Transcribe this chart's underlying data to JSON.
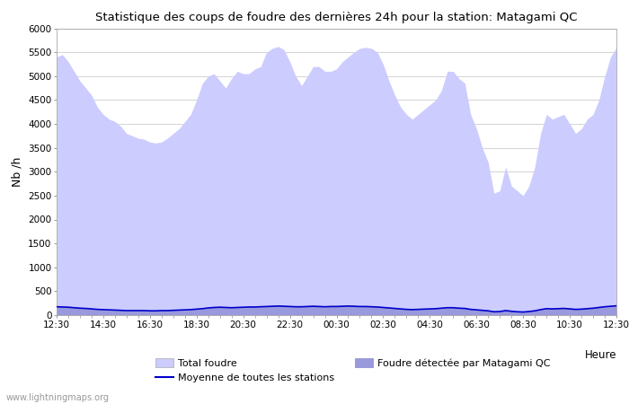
{
  "title": "Statistique des coups de foudre des dernières 24h pour la station: Matagami QC",
  "ylabel": "Nb /h",
  "xlabel": "Heure",
  "watermark": "www.lightningmaps.org",
  "ylim": [
    0,
    6000
  ],
  "yticks": [
    0,
    500,
    1000,
    1500,
    2000,
    2500,
    3000,
    3500,
    4000,
    4500,
    5000,
    5500,
    6000
  ],
  "xtick_labels": [
    "12:30",
    "14:30",
    "16:30",
    "18:30",
    "20:30",
    "22:30",
    "00:30",
    "02:30",
    "04:30",
    "06:30",
    "08:30",
    "10:30",
    "12:30"
  ],
  "total_foudre_color": "#ccccff",
  "matagami_color": "#9999dd",
  "moyenne_color": "#0000cc",
  "bg_color": "#ffffff",
  "grid_color": "#cccccc",
  "legend_labels": [
    "Total foudre",
    "Moyenne de toutes les stations",
    "Foudre détectée par Matagami QC"
  ],
  "n_points": 97,
  "total_foudre": [
    5400,
    5450,
    5300,
    5100,
    4900,
    4750,
    4600,
    4350,
    4200,
    4100,
    4050,
    3950,
    3800,
    3750,
    3700,
    3680,
    3620,
    3600,
    3620,
    3700,
    3800,
    3900,
    4050,
    4200,
    4500,
    4850,
    5000,
    5050,
    4900,
    4750,
    4950,
    5100,
    5050,
    5050,
    5150,
    5200,
    5500,
    5580,
    5620,
    5550,
    5300,
    5000,
    4800,
    5000,
    5200,
    5200,
    5100,
    5100,
    5150,
    5300,
    5400,
    5500,
    5580,
    5600,
    5580,
    5500,
    5250,
    4900,
    4600,
    4350,
    4200,
    4100,
    4200,
    4300,
    4400,
    4500,
    4700,
    5100,
    5100,
    4950,
    4850,
    4200,
    3900,
    3500,
    3200,
    2550,
    2600,
    3100,
    2700,
    2600,
    2500,
    2700,
    3100,
    3800,
    4200,
    4100,
    4150,
    4200,
    4000,
    3800,
    3900,
    4100,
    4200,
    4500,
    5000,
    5400,
    5600
  ],
  "matagami_foudre": [
    200,
    195,
    185,
    175,
    165,
    155,
    145,
    135,
    125,
    115,
    110,
    105,
    100,
    100,
    100,
    100,
    95,
    95,
    100,
    100,
    105,
    110,
    115,
    120,
    130,
    145,
    160,
    175,
    180,
    175,
    170,
    175,
    180,
    185,
    185,
    190,
    195,
    200,
    210,
    205,
    200,
    195,
    195,
    200,
    205,
    200,
    195,
    200,
    200,
    200,
    205,
    200,
    195,
    195,
    190,
    185,
    175,
    165,
    150,
    140,
    130,
    125,
    130,
    135,
    140,
    145,
    155,
    165,
    165,
    155,
    150,
    130,
    120,
    110,
    100,
    80,
    85,
    110,
    90,
    80,
    75,
    85,
    100,
    130,
    150,
    145,
    150,
    155,
    145,
    135,
    140,
    150,
    160,
    175,
    190,
    200,
    210
  ],
  "moyenne": [
    175,
    170,
    165,
    155,
    145,
    140,
    130,
    120,
    115,
    110,
    105,
    100,
    95,
    95,
    95,
    95,
    90,
    90,
    95,
    95,
    100,
    105,
    110,
    115,
    125,
    135,
    150,
    160,
    165,
    160,
    155,
    160,
    165,
    170,
    170,
    175,
    180,
    185,
    190,
    185,
    180,
    175,
    175,
    180,
    185,
    180,
    175,
    180,
    180,
    185,
    190,
    185,
    180,
    180,
    175,
    170,
    160,
    150,
    140,
    130,
    120,
    115,
    120,
    125,
    130,
    135,
    145,
    155,
    155,
    145,
    140,
    120,
    110,
    100,
    90,
    70,
    75,
    95,
    80,
    70,
    65,
    75,
    90,
    115,
    135,
    130,
    135,
    140,
    130,
    120,
    125,
    135,
    145,
    160,
    175,
    185,
    195
  ]
}
